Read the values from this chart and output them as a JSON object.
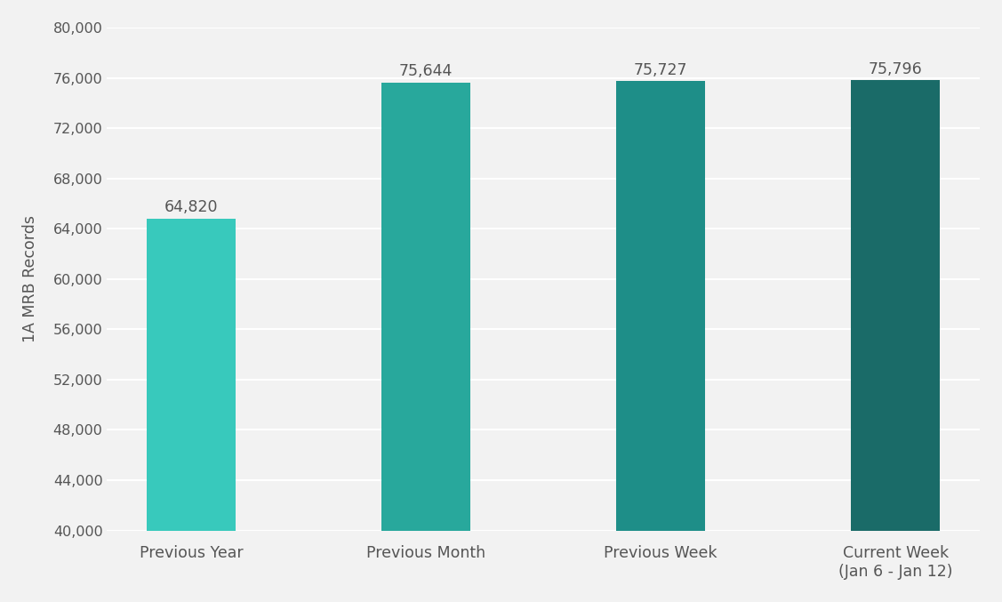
{
  "categories": [
    "Previous Year",
    "Previous Month",
    "Previous Week",
    "Current Week\n(Jan 6 - Jan 12)"
  ],
  "values": [
    64820,
    75644,
    75727,
    75796
  ],
  "bar_colors": [
    "#38c9bc",
    "#28a89c",
    "#1e8e88",
    "#1a6b68"
  ],
  "value_labels": [
    "64,820",
    "75,644",
    "75,727",
    "75,796"
  ],
  "ylabel": "1A MRB Records",
  "ylim": [
    40000,
    80000
  ],
  "yticks": [
    40000,
    44000,
    48000,
    52000,
    56000,
    60000,
    64000,
    68000,
    72000,
    76000,
    80000
  ],
  "background_color": "#f2f2f2",
  "plot_bg_color": "#f2f2f2",
  "bar_width": 0.38,
  "label_fontsize": 12.5,
  "tick_fontsize": 11.5,
  "ylabel_fontsize": 12.5,
  "value_label_fontsize": 12.5,
  "grid_color": "#ffffff",
  "text_color": "#555555",
  "value_label_color": "#555555"
}
